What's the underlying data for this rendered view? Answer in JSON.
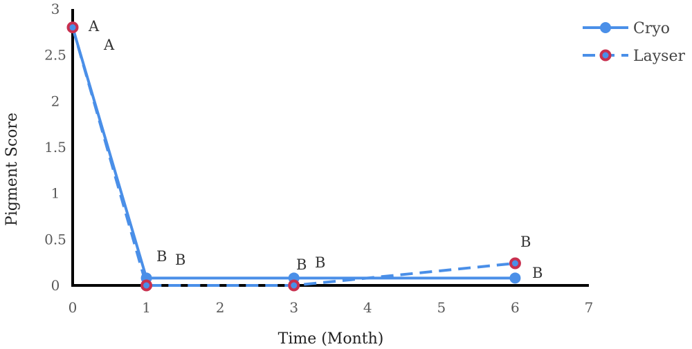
{
  "chart_data": {
    "type": "line",
    "title": "",
    "xlabel": "Time (Month)",
    "ylabel": "Pigment Score",
    "xlim": [
      0,
      7
    ],
    "ylim": [
      0,
      3
    ],
    "xticks": [
      "0",
      "1",
      "2",
      "3",
      "4",
      "5",
      "6",
      "7"
    ],
    "yticks": [
      "0",
      "0.5",
      "1",
      "1.5",
      "2",
      "2.5",
      "3"
    ],
    "grid": false,
    "legend_position": "top-right",
    "series": [
      {
        "name": "Cryo",
        "style": "solid",
        "marker": "filled-circle",
        "color": "#4a8fe8",
        "x": [
          0,
          1,
          3,
          6
        ],
        "y": [
          2.8,
          0.08,
          0.08,
          0.08
        ],
        "labels": [
          "A",
          "B",
          "B",
          "B"
        ]
      },
      {
        "name": "Layser",
        "style": "dashed",
        "marker": "ring",
        "color": "#4a8fe8",
        "marker_color": "#c8304f",
        "x": [
          0,
          1,
          3,
          6
        ],
        "y": [
          2.8,
          0,
          0,
          0.24
        ],
        "labels": [
          "A",
          "B",
          "B",
          "B"
        ]
      }
    ]
  }
}
